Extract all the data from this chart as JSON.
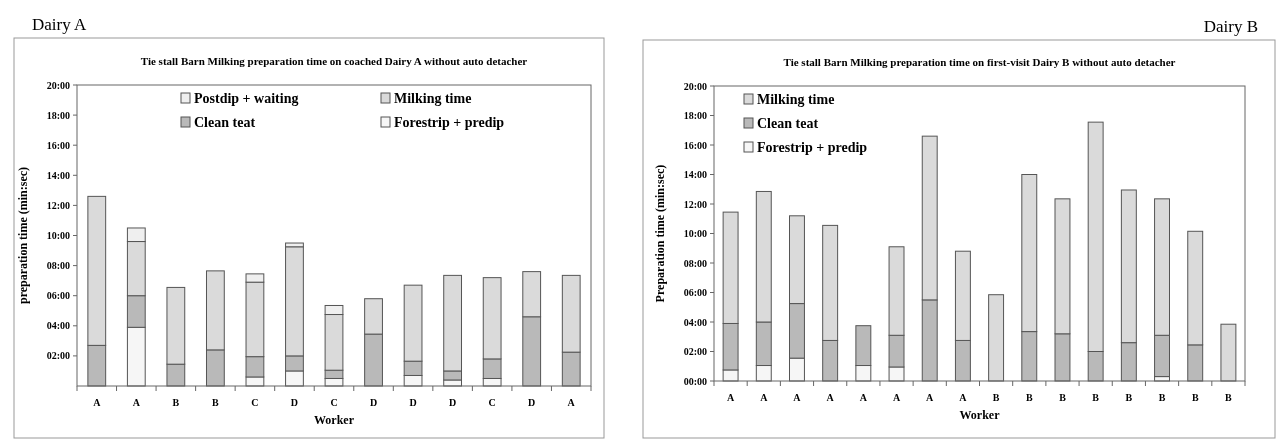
{
  "chart_data": [
    {
      "type": "bar",
      "stacked": true,
      "title": "Tie stall Barn Milking preparation time on coached Dairy A without auto detacher",
      "xlabel": "Worker",
      "ylabel": "preparation time (min:sec)",
      "annotations": [
        "Dairy A"
      ],
      "categories": [
        "A",
        "A",
        "B",
        "B",
        "C",
        "D",
        "C",
        "D",
        "D",
        "D",
        "C",
        "D",
        "A"
      ],
      "series": [
        {
          "name": "Forestrip + predip",
          "color": "#f6f6f6",
          "values": [
            0,
            3.9,
            null,
            0,
            0.6,
            1.0,
            0.5,
            0,
            0.7,
            0.4,
            0.5,
            0,
            null
          ]
        },
        {
          "name": "Clean teat",
          "color": "#b9b9b9",
          "values": [
            2.7,
            2.1,
            1.45,
            2.4,
            1.35,
            1.0,
            0.55,
            3.45,
            0.95,
            0.6,
            1.3,
            4.6,
            2.25
          ]
        },
        {
          "name": "Milking time",
          "color": "#dadada",
          "values": [
            9.9,
            3.6,
            5.1,
            5.25,
            4.95,
            7.25,
            3.7,
            2.35,
            5.05,
            6.35,
            5.4,
            3.0,
            5.1
          ]
        },
        {
          "name": "Postdip + waiting",
          "color": "#efefef",
          "values": [
            0,
            0.9,
            0,
            0,
            0.55,
            0.25,
            0.6,
            0,
            0,
            0,
            0,
            0,
            0
          ]
        }
      ],
      "ylim": [
        0,
        20
      ],
      "yticks": [
        {
          "value": 2,
          "label": "02:00"
        },
        {
          "value": 4,
          "label": "04:00"
        },
        {
          "value": 6,
          "label": "06:00"
        },
        {
          "value": 8,
          "label": "08:00"
        },
        {
          "value": 10,
          "label": "10:00"
        },
        {
          "value": 12,
          "label": "12:00"
        },
        {
          "value": 14,
          "label": "14:00"
        },
        {
          "value": 16,
          "label": "16:00"
        },
        {
          "value": 18,
          "label": "18:00"
        },
        {
          "value": 20,
          "label": "20:00"
        }
      ],
      "grid": false,
      "legend": "top right"
    },
    {
      "type": "bar",
      "stacked": true,
      "title": "Tie stall Barn Milking preparation time on first-visit Dairy B without auto detacher",
      "xlabel": "Worker",
      "ylabel": "Preparation time (min:sec)",
      "annotations": [
        "Dairy B"
      ],
      "categories": [
        "A",
        "A",
        "A",
        "A",
        "A",
        "A",
        "A",
        "A",
        "B",
        "B",
        "B",
        "B",
        "B",
        "B",
        "B",
        "B"
      ],
      "series": [
        {
          "name": "Forestrip + predip",
          "color": "#f6f6f6",
          "values": [
            0.75,
            1.05,
            1.55,
            0,
            1.05,
            0.95,
            0,
            0,
            0,
            0,
            0,
            0,
            0,
            0.3,
            null,
            0
          ]
        },
        {
          "name": "Clean teat",
          "color": "#b9b9b9",
          "values": [
            3.15,
            2.95,
            3.7,
            2.75,
            2.7,
            2.15,
            5.5,
            2.75,
            0,
            3.35,
            3.2,
            2.0,
            2.6,
            2.8,
            2.45,
            0
          ]
        },
        {
          "name": "Milking time",
          "color": "#dadada",
          "values": [
            7.55,
            8.85,
            5.95,
            7.8,
            0,
            6.0,
            11.1,
            6.05,
            5.85,
            10.65,
            9.15,
            15.55,
            10.35,
            9.25,
            7.7,
            3.85
          ]
        }
      ],
      "ylim": [
        0,
        20
      ],
      "yticks": [
        {
          "value": 0,
          "label": "00:00"
        },
        {
          "value": 2,
          "label": "02:00"
        },
        {
          "value": 4,
          "label": "04:00"
        },
        {
          "value": 6,
          "label": "06:00"
        },
        {
          "value": 8,
          "label": "08:00"
        },
        {
          "value": 10,
          "label": "10:00"
        },
        {
          "value": 12,
          "label": "12:00"
        },
        {
          "value": 14,
          "label": "14:00"
        },
        {
          "value": 16,
          "label": "16:00"
        },
        {
          "value": 18,
          "label": "18:00"
        },
        {
          "value": 20,
          "label": "20:00"
        }
      ],
      "grid": false,
      "legend": "top left"
    }
  ]
}
